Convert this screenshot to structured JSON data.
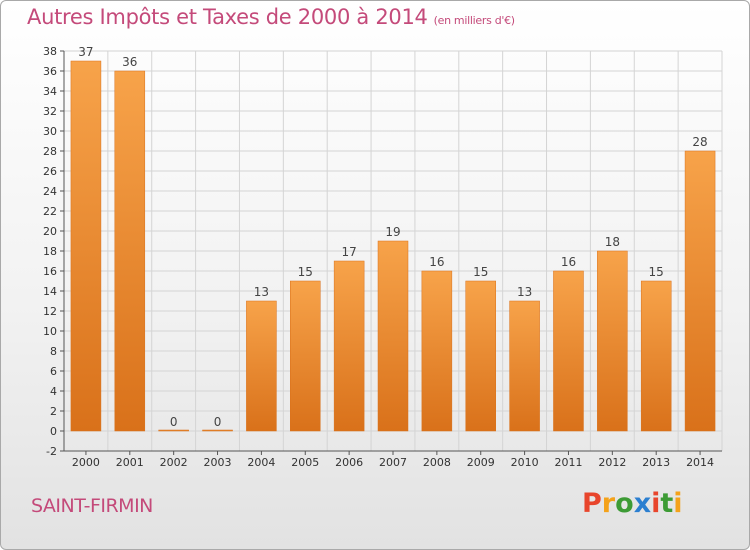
{
  "title": "Autres Impôts et Taxes de 2000 à 2014",
  "title_unit": "(en milliers d'€)",
  "commune": "SAINT-FIRMIN",
  "brand": {
    "letters": [
      "P",
      "r",
      "o",
      "x",
      "i",
      "t",
      "i"
    ],
    "colors": [
      "#e8452c",
      "#f4a21a",
      "#3d9b35",
      "#2b7fd0",
      "#e8452c",
      "#3d9b35",
      "#f4a21a"
    ]
  },
  "colors": {
    "title": "#c44a7a",
    "bar_light": "#f7a34a",
    "bar_dark": "#d9711a",
    "grid": "#d4d4d4"
  },
  "chart_data": {
    "type": "bar",
    "title": "Autres Impôts et Taxes de 2000 à 2014",
    "ylabel": "",
    "xlabel": "",
    "categories": [
      "2000",
      "2001",
      "2002",
      "2003",
      "2004",
      "2005",
      "2006",
      "2007",
      "2008",
      "2009",
      "2010",
      "2011",
      "2012",
      "2013",
      "2014"
    ],
    "values": [
      37,
      36,
      0,
      0,
      13,
      15,
      17,
      19,
      16,
      15,
      13,
      16,
      18,
      15,
      28
    ],
    "ylim": [
      -2,
      38
    ],
    "yticks": [
      -2,
      0,
      2,
      4,
      6,
      8,
      10,
      12,
      14,
      16,
      18,
      20,
      22,
      24,
      26,
      28,
      30,
      32,
      34,
      36,
      38
    ],
    "grid": true,
    "legend": "none"
  }
}
